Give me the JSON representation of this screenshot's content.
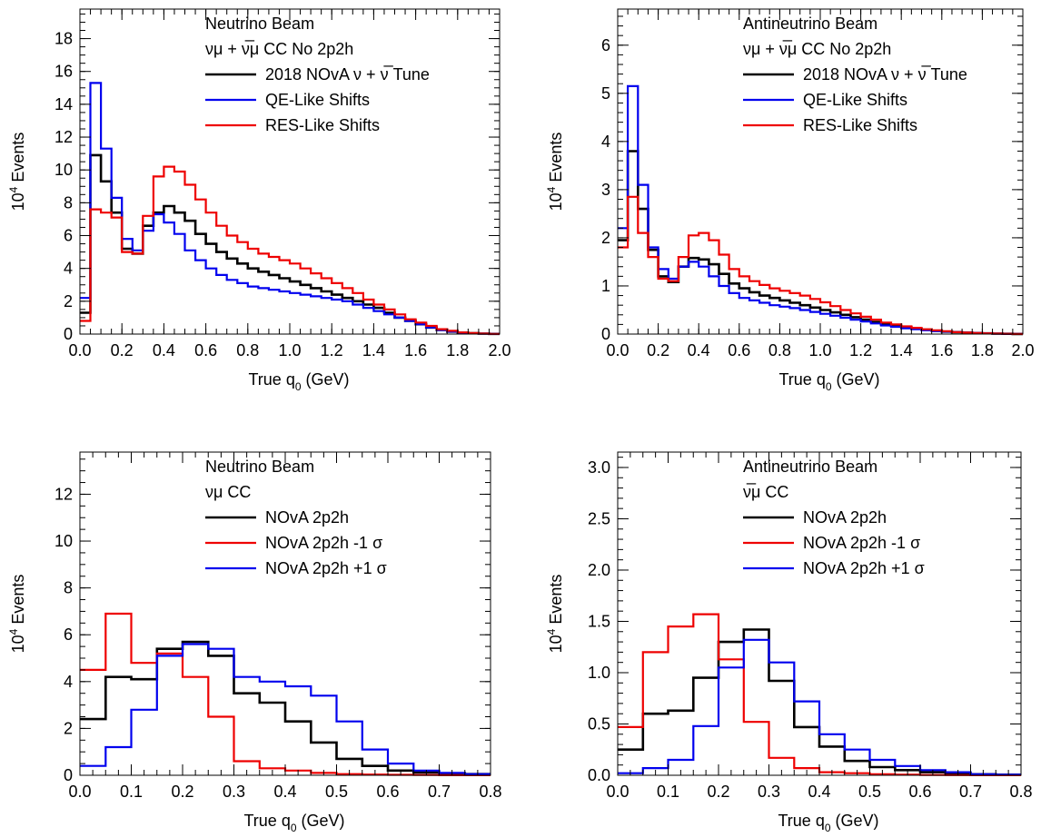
{
  "chart_data": [
    {
      "type": "step",
      "xlabel": "True q",
      "xlabel_sub": "0",
      "xlabel_unit": " (GeV)",
      "ylabel_base": "10",
      "ylabel_exp": "4",
      "ylabel_rest": " Events",
      "xlim": [
        0,
        2.0
      ],
      "ylim": [
        0,
        19.8
      ],
      "xticks": [
        0,
        0.2,
        0.4,
        0.6,
        0.8,
        1.0,
        1.2,
        1.4,
        1.6,
        1.8,
        2.0
      ],
      "xtick_labels": [
        "0.0",
        "0.2",
        "0.4",
        "0.6",
        "0.8",
        "1.0",
        "1.2",
        "1.4",
        "1.6",
        "1.8",
        "2.0"
      ],
      "yticks": [
        0,
        2,
        4,
        6,
        8,
        10,
        12,
        14,
        16,
        18
      ],
      "ytick_labels": [
        "0",
        "2",
        "4",
        "6",
        "8",
        "10",
        "12",
        "14",
        "16",
        "18"
      ],
      "yminor": 0.5,
      "xminor": 0.05,
      "edges_start": 0.0,
      "bin_width": 0.05,
      "legend": {
        "title": "Neutrino Beam",
        "subtitle": "νμ + ν̅μ CC No 2p2h",
        "entries": [
          "2018 NOvA ν + ν̅ Tune",
          "QE-Like Shifts",
          "RES-Like Shifts"
        ]
      },
      "series": [
        {
          "name": "2018 NOvA ν + ν̅ Tune",
          "color": "#000000",
          "values": [
            1.3,
            10.9,
            9.3,
            7.4,
            5.2,
            4.9,
            6.6,
            7.4,
            7.8,
            7.4,
            6.9,
            6.1,
            5.5,
            5.0,
            4.6,
            4.3,
            4.0,
            3.8,
            3.6,
            3.4,
            3.2,
            3.0,
            2.8,
            2.6,
            2.4,
            2.2,
            2.0,
            1.8,
            1.6,
            1.3,
            1.0,
            0.8,
            0.6,
            0.4,
            0.25,
            0.15,
            0.08,
            0.05,
            0.03,
            0.01
          ]
        },
        {
          "name": "QE-Like Shifts",
          "color": "#0000ee",
          "values": [
            2.2,
            15.3,
            11.3,
            8.3,
            5.8,
            5.1,
            6.3,
            7.3,
            6.8,
            6.1,
            5.1,
            4.5,
            4.0,
            3.6,
            3.3,
            3.1,
            2.9,
            2.8,
            2.7,
            2.6,
            2.5,
            2.4,
            2.3,
            2.2,
            2.1,
            2.0,
            1.8,
            1.6,
            1.4,
            1.2,
            1.0,
            0.8,
            0.6,
            0.4,
            0.25,
            0.15,
            0.08,
            0.05,
            0.03,
            0.01
          ]
        },
        {
          "name": "RES-Like Shifts",
          "color": "#ee0000",
          "values": [
            0.8,
            7.6,
            7.4,
            7.1,
            5.0,
            4.9,
            7.2,
            9.6,
            10.2,
            9.9,
            9.1,
            8.2,
            7.4,
            6.6,
            6.0,
            5.6,
            5.2,
            4.9,
            4.7,
            4.5,
            4.3,
            4.0,
            3.7,
            3.4,
            3.1,
            2.8,
            2.5,
            2.1,
            1.8,
            1.5,
            1.2,
            0.9,
            0.7,
            0.5,
            0.3,
            0.2,
            0.1,
            0.06,
            0.03,
            0.01
          ]
        }
      ]
    },
    {
      "type": "step",
      "xlabel": "True q",
      "xlabel_sub": "0",
      "xlabel_unit": " (GeV)",
      "ylabel_base": "10",
      "ylabel_exp": "4",
      "ylabel_rest": " Events",
      "xlim": [
        0,
        2.0
      ],
      "ylim": [
        0,
        6.75
      ],
      "xticks": [
        0,
        0.2,
        0.4,
        0.6,
        0.8,
        1.0,
        1.2,
        1.4,
        1.6,
        1.8,
        2.0
      ],
      "xtick_labels": [
        "0.0",
        "0.2",
        "0.4",
        "0.6",
        "0.8",
        "1.0",
        "1.2",
        "1.4",
        "1.6",
        "1.8",
        "2.0"
      ],
      "yticks": [
        0,
        1,
        2,
        3,
        4,
        5,
        6
      ],
      "ytick_labels": [
        "0",
        "1",
        "2",
        "3",
        "4",
        "5",
        "6"
      ],
      "yminor": 0.2,
      "xminor": 0.05,
      "edges_start": 0.0,
      "bin_width": 0.05,
      "legend": {
        "title": "Antineutrino Beam",
        "subtitle": "νμ + ν̅μ CC No 2p2h",
        "entries": [
          "2018 NOvA ν + ν̅ Tune",
          "QE-Like Shifts",
          "RES-Like Shifts"
        ]
      },
      "series": [
        {
          "name": "2018 NOvA ν + ν̅ Tune",
          "color": "#000000",
          "values": [
            1.95,
            3.8,
            2.6,
            1.75,
            1.2,
            1.08,
            1.4,
            1.58,
            1.55,
            1.45,
            1.25,
            1.05,
            0.95,
            0.87,
            0.8,
            0.75,
            0.7,
            0.65,
            0.6,
            0.55,
            0.5,
            0.45,
            0.4,
            0.35,
            0.3,
            0.25,
            0.2,
            0.17,
            0.14,
            0.11,
            0.09,
            0.07,
            0.05,
            0.04,
            0.03,
            0.02,
            0.015,
            0.01,
            0.005,
            0.002
          ]
        },
        {
          "name": "QE-Like Shifts",
          "color": "#0000ee",
          "values": [
            2.2,
            5.15,
            3.1,
            1.8,
            1.35,
            1.15,
            1.4,
            1.5,
            1.4,
            1.2,
            1.0,
            0.85,
            0.75,
            0.7,
            0.65,
            0.6,
            0.57,
            0.54,
            0.5,
            0.46,
            0.42,
            0.38,
            0.34,
            0.3,
            0.26,
            0.22,
            0.18,
            0.15,
            0.12,
            0.1,
            0.08,
            0.06,
            0.05,
            0.04,
            0.03,
            0.02,
            0.015,
            0.01,
            0.005,
            0.002
          ]
        },
        {
          "name": "RES-Like Shifts",
          "color": "#ee0000",
          "values": [
            1.8,
            2.85,
            2.1,
            1.6,
            1.15,
            1.1,
            1.6,
            2.05,
            2.1,
            1.95,
            1.65,
            1.35,
            1.2,
            1.1,
            1.02,
            0.95,
            0.9,
            0.85,
            0.8,
            0.73,
            0.66,
            0.58,
            0.5,
            0.43,
            0.36,
            0.3,
            0.24,
            0.2,
            0.16,
            0.13,
            0.1,
            0.08,
            0.06,
            0.04,
            0.03,
            0.02,
            0.015,
            0.01,
            0.005,
            0.002
          ]
        }
      ]
    },
    {
      "type": "step",
      "xlabel": "True q",
      "xlabel_sub": "0",
      "xlabel_unit": " (GeV)",
      "ylabel_base": "10",
      "ylabel_exp": "4",
      "ylabel_rest": " Events",
      "xlim": [
        0,
        0.8
      ],
      "ylim": [
        0,
        13.8
      ],
      "xticks": [
        0,
        0.1,
        0.2,
        0.3,
        0.4,
        0.5,
        0.6,
        0.7,
        0.8
      ],
      "xtick_labels": [
        "0.0",
        "0.1",
        "0.2",
        "0.3",
        "0.4",
        "0.5",
        "0.6",
        "0.7",
        "0.8"
      ],
      "yticks": [
        0,
        2,
        4,
        6,
        8,
        10,
        12
      ],
      "ytick_labels": [
        "0",
        "2",
        "4",
        "6",
        "8",
        "10",
        "12"
      ],
      "yminor": 0.5,
      "xminor": 0.025,
      "edges_start": 0.0,
      "bin_width": 0.05,
      "legend": {
        "title": "Neutrino Beam",
        "subtitle": "νμ CC",
        "entries": [
          "NOvA 2p2h",
          "NOvA 2p2h -1 σ",
          "NOvA 2p2h +1 σ"
        ]
      },
      "series": [
        {
          "name": "NOvA 2p2h",
          "color": "#000000",
          "values": [
            2.4,
            4.2,
            4.1,
            5.4,
            5.7,
            5.1,
            3.5,
            3.1,
            2.3,
            1.4,
            0.7,
            0.4,
            0.2,
            0.12,
            0.08,
            0.05
          ]
        },
        {
          "name": "NOvA 2p2h -1 σ",
          "color": "#ee0000",
          "values": [
            4.5,
            6.9,
            4.8,
            5.2,
            4.2,
            2.5,
            0.6,
            0.3,
            0.2,
            0.1,
            0.05,
            0.03,
            0.02,
            0.01,
            0.005,
            0.002
          ]
        },
        {
          "name": "NOvA 2p2h +1 σ",
          "color": "#0000ee",
          "values": [
            0.4,
            1.2,
            2.8,
            5.1,
            5.6,
            5.4,
            4.2,
            4.0,
            3.8,
            3.4,
            2.3,
            1.1,
            0.5,
            0.2,
            0.1,
            0.05
          ]
        }
      ]
    },
    {
      "type": "step",
      "xlabel": "True q",
      "xlabel_sub": "0",
      "xlabel_unit": " (GeV)",
      "ylabel_base": "10",
      "ylabel_exp": "4",
      "ylabel_rest": " Events",
      "xlim": [
        0,
        0.8
      ],
      "ylim": [
        0,
        3.15
      ],
      "xticks": [
        0,
        0.1,
        0.2,
        0.3,
        0.4,
        0.5,
        0.6,
        0.7,
        0.8
      ],
      "xtick_labels": [
        "0.0",
        "0.1",
        "0.2",
        "0.3",
        "0.4",
        "0.5",
        "0.6",
        "0.7",
        "0.8"
      ],
      "yticks": [
        0,
        0.5,
        1.0,
        1.5,
        2.0,
        2.5,
        3.0
      ],
      "ytick_labels": [
        "0.0",
        "0.5",
        "1.0",
        "1.5",
        "2.0",
        "2.5",
        "3.0"
      ],
      "yminor": 0.1,
      "xminor": 0.025,
      "edges_start": 0.0,
      "bin_width": 0.05,
      "legend": {
        "title": "Antineutrino Beam",
        "subtitle": "ν̅μ CC",
        "entries": [
          "NOvA 2p2h",
          "NOvA 2p2h -1 σ",
          "NOvA 2p2h +1 σ"
        ]
      },
      "series": [
        {
          "name": "NOvA 2p2h",
          "color": "#000000",
          "values": [
            0.25,
            0.6,
            0.63,
            0.95,
            1.3,
            1.42,
            0.92,
            0.47,
            0.28,
            0.14,
            0.08,
            0.05,
            0.03,
            0.02,
            0.01,
            0.005
          ]
        },
        {
          "name": "NOvA 2p2h -1 σ",
          "color": "#ee0000",
          "values": [
            0.47,
            1.2,
            1.45,
            1.57,
            1.13,
            0.52,
            0.17,
            0.07,
            0.03,
            0.02,
            0.01,
            0.005,
            0.003,
            0.002,
            0.001,
            0.001
          ]
        },
        {
          "name": "NOvA 2p2h +1 σ",
          "color": "#0000ee",
          "values": [
            0.02,
            0.07,
            0.15,
            0.48,
            1.05,
            1.32,
            1.1,
            0.72,
            0.4,
            0.25,
            0.15,
            0.09,
            0.05,
            0.03,
            0.01,
            0.005
          ]
        }
      ]
    }
  ]
}
